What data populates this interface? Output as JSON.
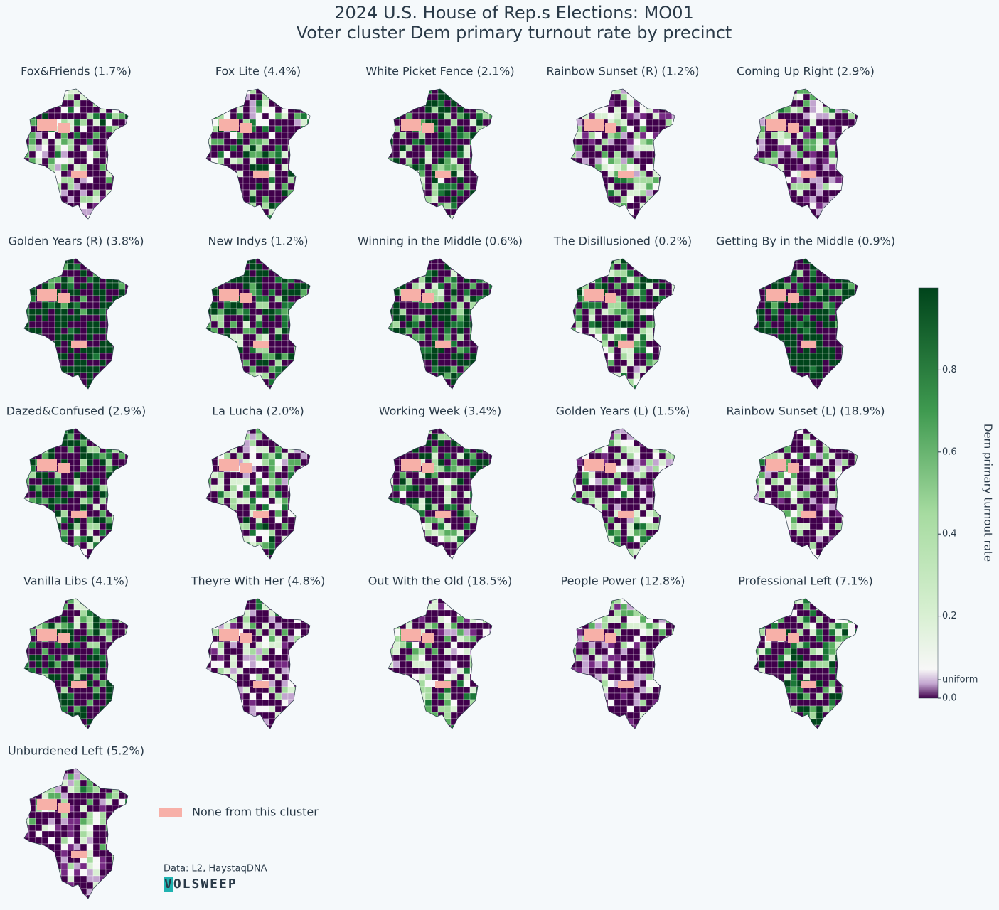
{
  "header": {
    "title": [
      "2024 U.S. House of Rep.s Elections: MO01",
      "Voter cluster Dem primary turnout rate by precinct"
    ]
  },
  "panels": [
    "Fox&Friends (1.7%)",
    "Fox Lite (4.4%)",
    "White Picket Fence (2.1%)",
    "Rainbow Sunset (R) (1.2%)",
    "Coming Up Right (2.9%)",
    "Golden Years (R) (3.8%)",
    "New Indys (1.2%)",
    "Winning in the Middle (0.6%)",
    "The Disillusioned (0.2%)",
    "Getting By in the Middle (0.9%)",
    "Dazed&Confused (2.9%)",
    "La Lucha (2.0%)",
    "Working Week (3.4%)",
    "Golden Years (L) (1.5%)",
    "Rainbow Sunset (L) (18.9%)",
    "Vanilla Libs (4.1%)",
    "Theyre With Her (4.8%)",
    "Out With the Old (18.5%)",
    "People Power (12.8%)",
    "Professional Left (7.1%)",
    "Unburdened Left (5.2%)"
  ],
  "colorbar": {
    "label": "Dem primary turnout rate",
    "lim": [
      0,
      1
    ],
    "ticks": [
      {
        "value": 0,
        "label": "0.0"
      },
      {
        "value": 0.045,
        "label": "uniform"
      },
      0.2,
      0.4,
      0.6,
      0.8
    ]
  },
  "legend": {
    "label": "None from this cluster",
    "color": "#f7b0a8"
  },
  "footer": {
    "source": "Data: L2, HaystaqDNA",
    "logo": "VOLSWEEP"
  }
}
